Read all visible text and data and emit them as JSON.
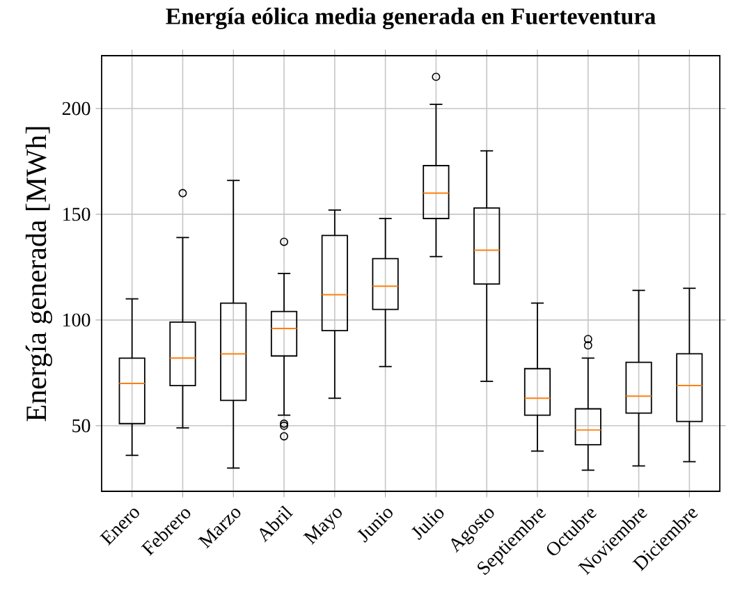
{
  "chart_data": {
    "type": "box",
    "title": "Energía eólica media generada en Fuerteventura",
    "ylabel": "Energía generada [MWh]",
    "categories": [
      "Enero",
      "Febrero",
      "Marzo",
      "Abril",
      "Mayo",
      "Junio",
      "Julio",
      "Agosto",
      "Septiembre",
      "Octubre",
      "Noviembre",
      "Diciembre"
    ],
    "boxes": [
      {
        "low": 36,
        "q1": 51,
        "median": 70,
        "q3": 82,
        "high": 110
      },
      {
        "low": 49,
        "q1": 69,
        "median": 82,
        "q3": 99,
        "high": 139,
        "outliers": [
          160
        ]
      },
      {
        "low": 30,
        "q1": 62,
        "median": 84,
        "q3": 108,
        "high": 166
      },
      {
        "low": 55,
        "q1": 83,
        "median": 96,
        "q3": 104,
        "high": 122,
        "outliers": [
          137,
          51,
          50,
          45
        ]
      },
      {
        "low": 63,
        "q1": 95,
        "median": 112,
        "q3": 140,
        "high": 152
      },
      {
        "low": 78,
        "q1": 105,
        "median": 116,
        "q3": 129,
        "high": 148
      },
      {
        "low": 130,
        "q1": 148,
        "median": 160,
        "q3": 173,
        "high": 202,
        "outliers": [
          215
        ]
      },
      {
        "low": 71,
        "q1": 117,
        "median": 133,
        "q3": 153,
        "high": 180
      },
      {
        "low": 38,
        "q1": 55,
        "median": 63,
        "q3": 77,
        "high": 108
      },
      {
        "low": 29,
        "q1": 41,
        "median": 48,
        "q3": 58,
        "high": 82,
        "outliers": [
          91,
          88
        ]
      },
      {
        "low": 31,
        "q1": 56,
        "median": 64,
        "q3": 80,
        "high": 114
      },
      {
        "low": 33,
        "q1": 52,
        "median": 69,
        "q3": 84,
        "high": 115
      }
    ],
    "ylim": [
      19,
      225
    ],
    "yticks": [
      50,
      100,
      150,
      200
    ],
    "grid": true
  }
}
